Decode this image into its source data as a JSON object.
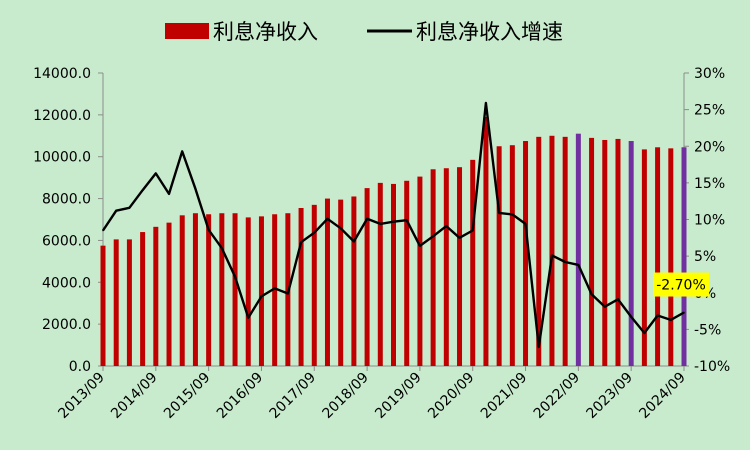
{
  "chart_data": {
    "type": "bar",
    "legend": {
      "position": "top",
      "bar_label": "利息净收入",
      "line_label": "利息净收入增速"
    },
    "x_tick_labels": [
      "2013/09",
      "2014/09",
      "2015/09",
      "2016/09",
      "2017/09",
      "2018/09",
      "2019/09",
      "2020/09",
      "2021/09",
      "2022/09",
      "2023/09",
      "2024/09"
    ],
    "y_left": {
      "range": [
        0,
        14000
      ],
      "ticks": [
        "0.0",
        "2000.0",
        "4000.0",
        "6000.0",
        "8000.0",
        "10000.0",
        "12000.0",
        "14000.0"
      ]
    },
    "y_right": {
      "range": [
        -10,
        30
      ],
      "ticks": [
        "-10%",
        "-5%",
        "0%",
        "5%",
        "10%",
        "15%",
        "20%",
        "25%",
        "30%"
      ]
    },
    "series": [
      {
        "name": "利息净收入",
        "type": "bar",
        "color": "#c00000",
        "highlight_color": "#7030a0",
        "highlight_indices": [
          36,
          40,
          44
        ],
        "values": [
          5750,
          6050,
          6050,
          6400,
          6650,
          6850,
          7200,
          7300,
          7250,
          7300,
          7300,
          7100,
          7150,
          7250,
          7300,
          7550,
          7700,
          8000,
          7950,
          8100,
          8500,
          8750,
          8700,
          8850,
          9050,
          9400,
          9450,
          9500,
          9850,
          11900,
          10500,
          10550,
          10750,
          10950,
          11000,
          10950,
          11100,
          10900,
          10800,
          10850,
          10750,
          10350,
          10450,
          10400,
          10450
        ]
      },
      {
        "name": "利息净收入增速",
        "type": "line",
        "color": "#000000",
        "unit": "%",
        "values": [
          8.5,
          11.2,
          11.6,
          14.0,
          16.3,
          13.5,
          19.3,
          14.2,
          8.6,
          6.1,
          2.2,
          -3.4,
          -0.5,
          0.6,
          -0.1,
          6.9,
          8.2,
          10.1,
          8.8,
          7.0,
          10.1,
          9.4,
          9.7,
          9.9,
          6.4,
          7.7,
          9.1,
          7.5,
          8.5,
          25.9,
          10.9,
          10.7,
          9.4,
          -7.4,
          5.1,
          4.2,
          3.8,
          -0.2,
          -1.9,
          -0.9,
          -3.3,
          -5.5,
          -3.1,
          -3.7,
          -2.7
        ]
      }
    ],
    "annotation": {
      "text": "-2.70%",
      "index": 44,
      "background": "#ffff00"
    }
  }
}
